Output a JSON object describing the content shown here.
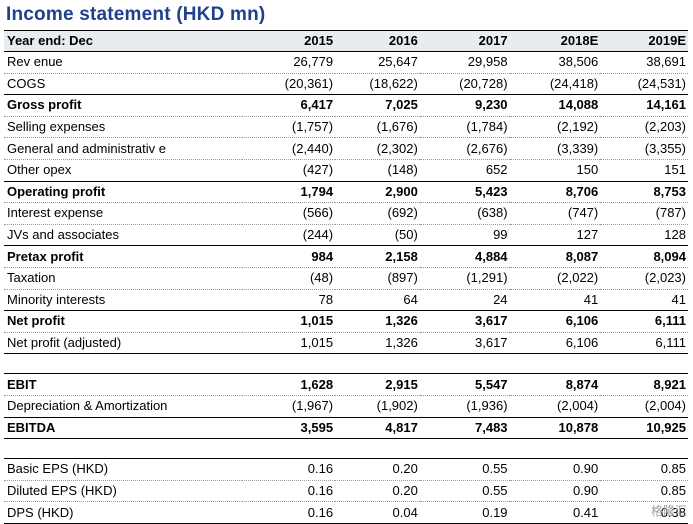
{
  "title": "Income statement (HKD mn)",
  "header": [
    "Year end: Dec",
    "2015",
    "2016",
    "2017",
    "2018E",
    "2019E"
  ],
  "rows": [
    {
      "label": "Rev enue",
      "values": [
        "26,779",
        "25,647",
        "29,958",
        "38,506",
        "38,691"
      ],
      "bold": false
    },
    {
      "label": "COGS",
      "values": [
        "(20,361)",
        "(18,622)",
        "(20,728)",
        "(24,418)",
        "(24,531)"
      ],
      "bold": false
    },
    {
      "label": "Gross profit",
      "values": [
        "6,417",
        "7,025",
        "9,230",
        "14,088",
        "14,161"
      ],
      "bold": true
    },
    {
      "label": "Selling expenses",
      "values": [
        "(1,757)",
        "(1,676)",
        "(1,784)",
        "(2,192)",
        "(2,203)"
      ],
      "bold": false
    },
    {
      "label": "General and administrativ e",
      "values": [
        "(2,440)",
        "(2,302)",
        "(2,676)",
        "(3,339)",
        "(3,355)"
      ],
      "bold": false
    },
    {
      "label": "Other opex",
      "values": [
        "(427)",
        "(148)",
        "652",
        "150",
        "151"
      ],
      "bold": false
    },
    {
      "label": "Operating profit",
      "values": [
        "1,794",
        "2,900",
        "5,423",
        "8,706",
        "8,753"
      ],
      "bold": true
    },
    {
      "label": "Interest expense",
      "values": [
        "(566)",
        "(692)",
        "(638)",
        "(747)",
        "(787)"
      ],
      "bold": false
    },
    {
      "label": "JVs and associates",
      "values": [
        "(244)",
        "(50)",
        "99",
        "127",
        "128"
      ],
      "bold": false
    },
    {
      "label": "Pretax profit",
      "values": [
        "984",
        "2,158",
        "4,884",
        "8,087",
        "8,094"
      ],
      "bold": true
    },
    {
      "label": "Taxation",
      "values": [
        "(48)",
        "(897)",
        "(1,291)",
        "(2,022)",
        "(2,023)"
      ],
      "bold": false
    },
    {
      "label": "Minority interests",
      "values": [
        "78",
        "64",
        "24",
        "41",
        "41"
      ],
      "bold": false
    },
    {
      "label": "Net profit",
      "values": [
        "1,015",
        "1,326",
        "3,617",
        "6,106",
        "6,111"
      ],
      "bold": true
    },
    {
      "label": "Net profit (adjusted)",
      "values": [
        "1,015",
        "1,326",
        "3,617",
        "6,106",
        "6,111"
      ],
      "bold": false
    },
    {
      "label": "EBIT",
      "values": [
        "1,628",
        "2,915",
        "5,547",
        "8,874",
        "8,921"
      ],
      "bold": true
    },
    {
      "label": "Depreciation & Amortization",
      "values": [
        "(1,967)",
        "(1,902)",
        "(1,936)",
        "(2,004)",
        "(2,004)"
      ],
      "bold": false
    },
    {
      "label": "EBITDA",
      "values": [
        "3,595",
        "4,817",
        "7,483",
        "10,878",
        "10,925"
      ],
      "bold": true
    },
    {
      "label": "Basic EPS (HKD)",
      "values": [
        "0.16",
        "0.20",
        "0.55",
        "0.90",
        "0.85"
      ],
      "bold": false
    },
    {
      "label": "Diluted EPS (HKD)",
      "values": [
        "0.16",
        "0.20",
        "0.55",
        "0.90",
        "0.85"
      ],
      "bold": false
    },
    {
      "label": "DPS (HKD)",
      "values": [
        "0.16",
        "0.04",
        "0.19",
        "0.41",
        "0.38"
      ],
      "bold": false
    }
  ],
  "watermark": "格隆汇"
}
